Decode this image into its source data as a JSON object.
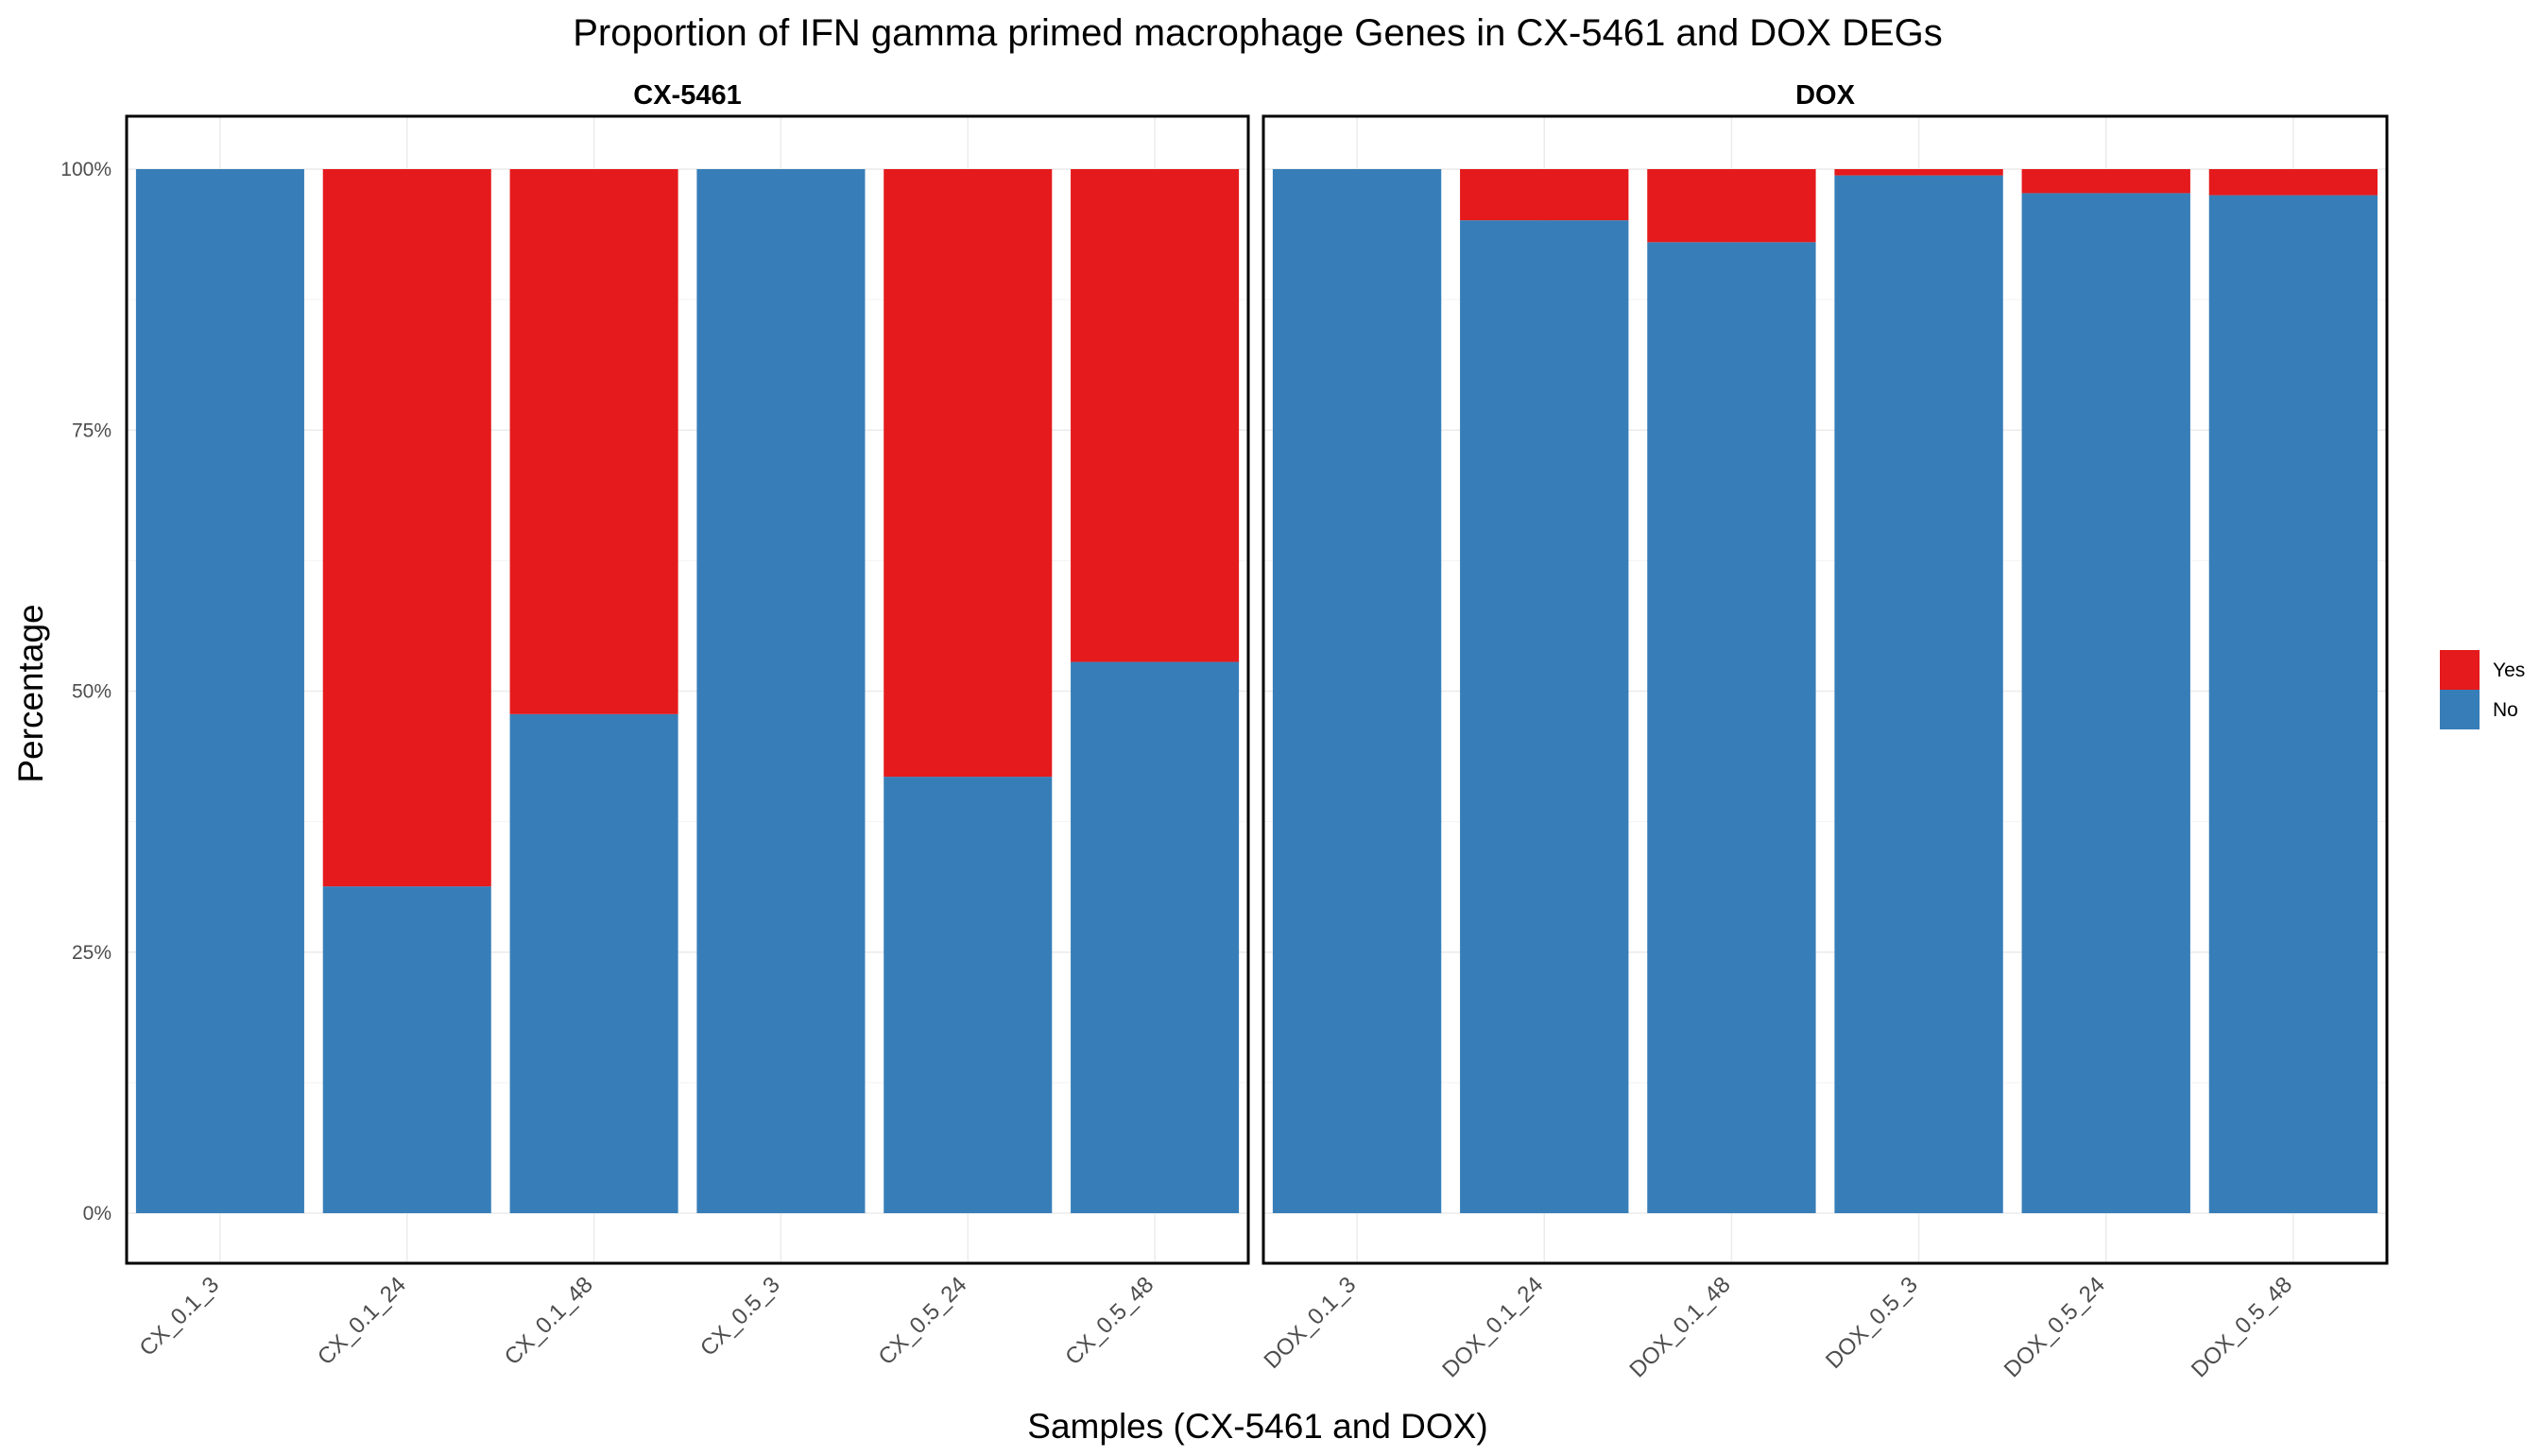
{
  "chart_data": {
    "type": "bar",
    "stacked": true,
    "normalized": true,
    "title": "Proportion of IFN gamma primed macrophage Genes in CX-5461 and DOX DEGs",
    "xlabel": "Samples (CX-5461 and DOX)",
    "ylabel": "Percentage",
    "ylim": [
      0,
      1
    ],
    "yticks": [
      "0%",
      "25%",
      "50%",
      "75%",
      "100%"
    ],
    "ytick_values": [
      0,
      0.25,
      0.5,
      0.75,
      1.0
    ],
    "grid": true,
    "legend_position": "right",
    "series_names": [
      "No",
      "Yes"
    ],
    "colors": {
      "No": "#377EB8",
      "Yes": "#E41A1C"
    },
    "legend": [
      {
        "name": "Yes",
        "color": "#E41A1C"
      },
      {
        "name": "No",
        "color": "#377EB8"
      }
    ],
    "panels": [
      {
        "name": "CX-5461",
        "categories": [
          "CX_0.1_3",
          "CX_0.1_24",
          "CX_0.1_48",
          "CX_0.5_3",
          "CX_0.5_24",
          "CX_0.5_48"
        ],
        "series": [
          {
            "name": "No",
            "values": [
              1.0,
              0.313,
              0.478,
              1.0,
              0.418,
              0.528
            ]
          },
          {
            "name": "Yes",
            "values": [
              0.0,
              0.687,
              0.522,
              0.0,
              0.582,
              0.472
            ]
          }
        ]
      },
      {
        "name": "DOX",
        "categories": [
          "DOX_0.1_3",
          "DOX_0.1_24",
          "DOX_0.1_48",
          "DOX_0.5_3",
          "DOX_0.5_24",
          "DOX_0.5_48"
        ],
        "series": [
          {
            "name": "No",
            "values": [
              1.0,
              0.951,
              0.93,
              0.994,
              0.977,
              0.975
            ]
          },
          {
            "name": "Yes",
            "values": [
              0.0,
              0.049,
              0.07,
              0.006,
              0.023,
              0.025
            ]
          }
        ]
      }
    ]
  }
}
